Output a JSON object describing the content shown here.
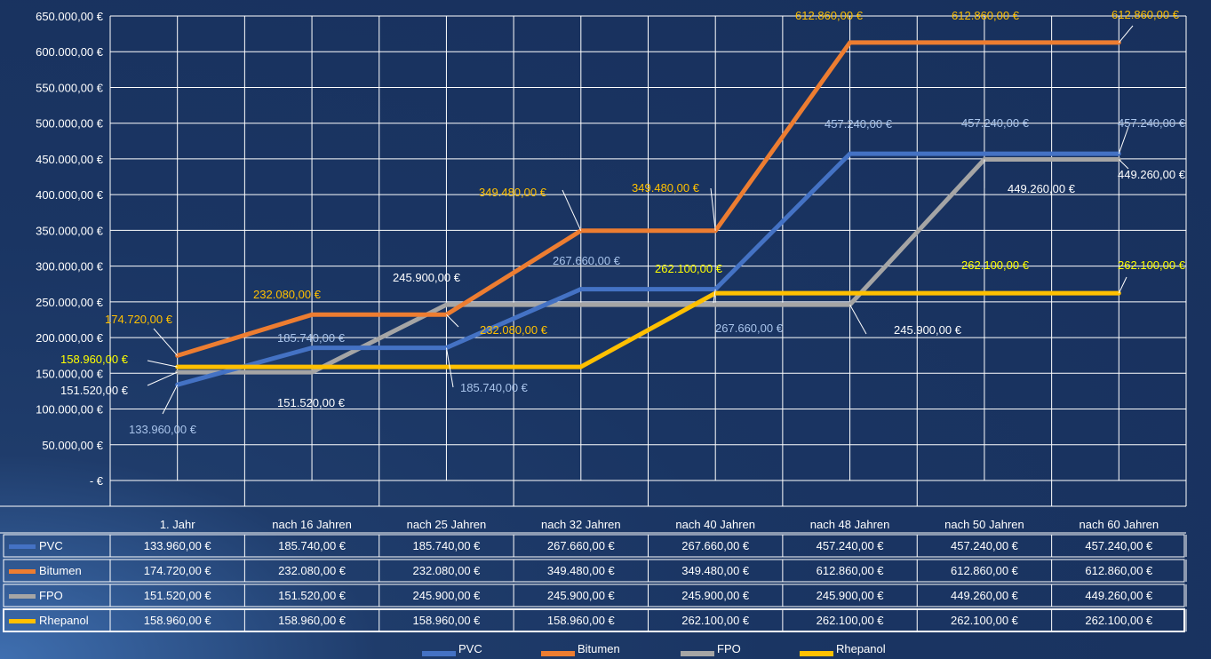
{
  "chart_data": {
    "type": "line",
    "categories": [
      "1. Jahr",
      "nach 16 Jahren",
      "nach 25 Jahren",
      "nach 32 Jahren",
      "nach 40 Jahren",
      "nach 48 Jahren",
      "nach 50 Jahren",
      "nach 60 Jahren"
    ],
    "ylim": [
      0,
      650000
    ],
    "ystep": 50000,
    "yticks": [
      "650.000,00 €",
      "600.000,00 €",
      "550.000,00 €",
      "500.000,00 €",
      "450.000,00 €",
      "400.000,00 €",
      "350.000,00 €",
      "300.000,00 €",
      "250.000,00 €",
      "200.000,00 €",
      "150.000,00 €",
      "100.000,00 €",
      "50.000,00 €",
      "-   €"
    ],
    "grid": true,
    "legend_position": "bottom",
    "data_table": true,
    "series": [
      {
        "name": "PVC",
        "color": "#4472c4",
        "label_color": "#a9c4eb",
        "values": [
          133960,
          185740,
          185740,
          267660,
          267660,
          457240,
          457240,
          457240
        ],
        "labels": [
          "133.960,00 €",
          "185.740,00 €",
          "185.740,00 €",
          "267.660,00 €",
          "267.660,00 €",
          "457.240,00 €",
          "457.240,00 €",
          "457.240,00 €"
        ]
      },
      {
        "name": "Bitumen",
        "color": "#ed7d31",
        "label_color": "#ffc000",
        "values": [
          174720,
          232080,
          232080,
          349480,
          349480,
          612860,
          612860,
          612860
        ],
        "labels": [
          "174.720,00 €",
          "232.080,00 €",
          "232.080,00 €",
          "349.480,00 €",
          "349.480,00 €",
          "612.860,00 €",
          "612.860,00 €",
          "612.860,00 €"
        ]
      },
      {
        "name": "FPO",
        "color": "#a5a5a5",
        "label_color": "#ffffff",
        "values": [
          151520,
          151520,
          245900,
          245900,
          245900,
          245900,
          449260,
          449260
        ],
        "labels": [
          "151.520,00 €",
          "151.520,00 €",
          "245.900,00 €",
          "245.900,00 €",
          "245.900,00 €",
          "245.900,00 €",
          "449.260,00 €",
          "449.260,00 €"
        ]
      },
      {
        "name": "Rhepanol",
        "color": "#ffc000",
        "label_color": "#ffff00",
        "values": [
          158960,
          158960,
          158960,
          158960,
          262100,
          262100,
          262100,
          262100
        ],
        "labels": [
          "158.960,00 €",
          "158.960,00 €",
          "158.960,00 €",
          "158.960,00 €",
          "262.100,00 €",
          "262.100,00 €",
          "262.100,00 €",
          "262.100,00 €"
        ]
      }
    ]
  }
}
